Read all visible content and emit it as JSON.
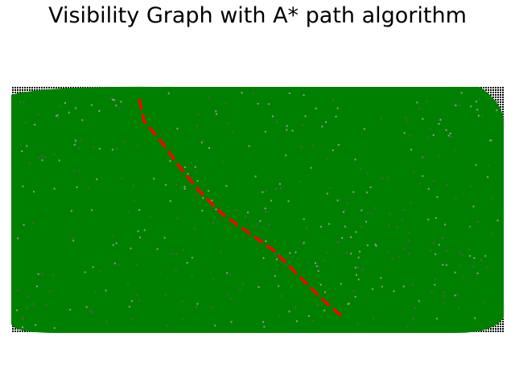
{
  "chart_data": {
    "type": "scatter",
    "title": "Visibility Graph with A* path algorithm",
    "xlabel": "",
    "ylabel": "",
    "axes_visible": false,
    "grid": false,
    "legend": "none",
    "xlim": [
      0,
      100
    ],
    "ylim": [
      0,
      50
    ],
    "obstacle_grid": {
      "description_of_content": "dense grid of obstacle points covering the whole map, overdrawn by visibility-graph edges",
      "x_range": [
        0,
        100
      ],
      "y_range": [
        0,
        50
      ],
      "color": "#000000"
    },
    "visibility_edges_color": "#008000",
    "path": {
      "color": "#ff0000",
      "style": "dashed",
      "points": [
        [
          26,
          47.5
        ],
        [
          27,
          43
        ],
        [
          30,
          39.5
        ],
        [
          34,
          34
        ],
        [
          38,
          29
        ],
        [
          43,
          24
        ],
        [
          48,
          20.5
        ],
        [
          53,
          17
        ],
        [
          58,
          12
        ],
        [
          63,
          7
        ],
        [
          67,
          3.5
        ]
      ]
    },
    "colors": {
      "edges": "#008000",
      "path": "#ff0000",
      "obstacles": "#000000",
      "background": "#ffffff"
    }
  }
}
